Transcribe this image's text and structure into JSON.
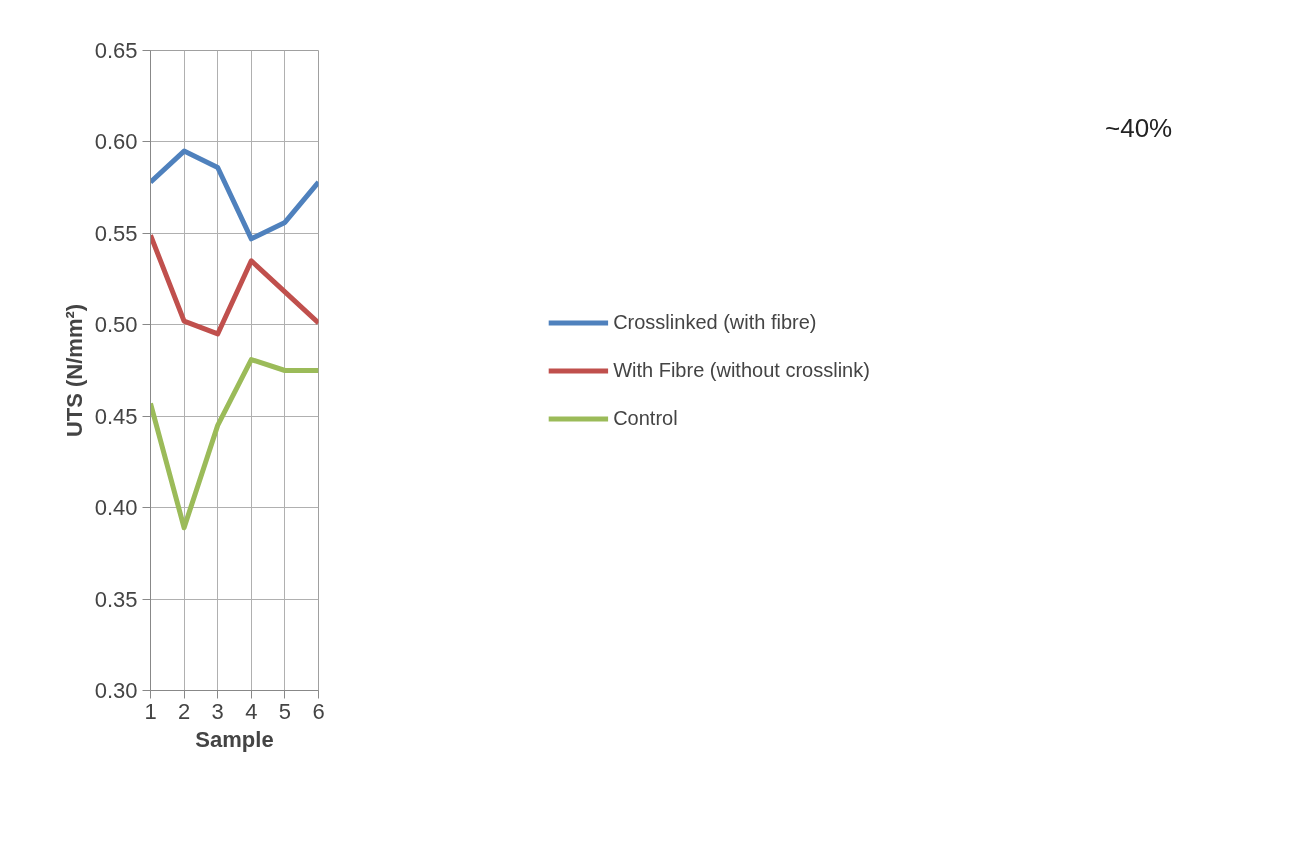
{
  "chart_data": {
    "type": "line",
    "xlabel": "Sample",
    "ylabel": "UTS (N/mm²)",
    "x": [
      1,
      2,
      3,
      4,
      5,
      6
    ],
    "series": [
      {
        "name": "Crosslinked (with fibre)",
        "color": "#4f81bd",
        "values": [
          0.578,
          0.595,
          0.586,
          0.547,
          0.556,
          0.578
        ]
      },
      {
        "name": "With Fibre (without crosslink)",
        "color": "#c0504d",
        "values": [
          0.549,
          0.502,
          0.495,
          0.535,
          0.518,
          0.501
        ]
      },
      {
        "name": "Control",
        "color": "#9bbb59",
        "values": [
          0.457,
          0.389,
          0.445,
          0.481,
          0.475,
          0.475
        ]
      }
    ],
    "xlim": [
      1,
      6
    ],
    "xticks": [
      1,
      2,
      3,
      4,
      5,
      6
    ],
    "ylim": [
      0.3,
      0.65
    ],
    "yticks": [
      {
        "value": 0.3,
        "label": "0.30"
      },
      {
        "value": 0.35,
        "label": "0.35"
      },
      {
        "value": 0.4,
        "label": "0.40"
      },
      {
        "value": 0.45,
        "label": "0.45"
      },
      {
        "value": 0.5,
        "label": "0.50"
      },
      {
        "value": 0.55,
        "label": "0.55"
      },
      {
        "value": 0.6,
        "label": "0.60"
      },
      {
        "value": 0.65,
        "label": "0.65"
      }
    ],
    "grid": true,
    "legend": "right",
    "marker": "none",
    "line_style": "solid",
    "annotations": [
      "~40%"
    ]
  }
}
